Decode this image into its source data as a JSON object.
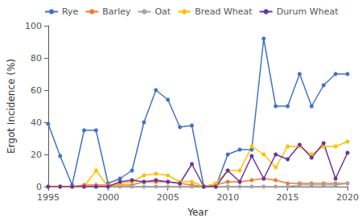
{
  "chart_data": {
    "type": "line",
    "xlabel": "Year",
    "ylabel": "Ergot Incidence (%)",
    "x": [
      1995,
      1996,
      1997,
      1998,
      1999,
      2000,
      2001,
      2002,
      2003,
      2004,
      2005,
      2006,
      2007,
      2008,
      2009,
      2010,
      2011,
      2012,
      2013,
      2014,
      2015,
      2016,
      2017,
      2018,
      2019,
      2020
    ],
    "series": [
      {
        "name": "Rye",
        "color": "#4472C4",
        "values": [
          39,
          19,
          1,
          35,
          35,
          2,
          5,
          10,
          40,
          60,
          54,
          37,
          38,
          0,
          0,
          20,
          23,
          23,
          92,
          50,
          50,
          70,
          50,
          63,
          70,
          70
        ]
      },
      {
        "name": "Barley",
        "color": "#ED7D31",
        "values": [
          0,
          0,
          0,
          1,
          1,
          1,
          1,
          1,
          3,
          3,
          3,
          2,
          1,
          0,
          1,
          3,
          3,
          4,
          5,
          4,
          2,
          2,
          2,
          2,
          2,
          2
        ]
      },
      {
        "name": "Oat",
        "color": "#A5A5A5",
        "values": [
          0,
          0,
          0,
          0,
          0,
          0,
          0,
          0,
          0,
          0,
          0,
          0,
          0,
          0,
          0,
          0,
          0,
          0,
          0,
          0,
          0,
          1,
          1,
          1,
          1,
          2
        ]
      },
      {
        "name": "Bread Wheat",
        "color": "#FFC000",
        "values": [
          0,
          0,
          0,
          0,
          10,
          0,
          2,
          3,
          7,
          8,
          7,
          3,
          3,
          0,
          2,
          10,
          10,
          25,
          20,
          12,
          25,
          25,
          20,
          25,
          25,
          28
        ]
      },
      {
        "name": "Durum Wheat",
        "color": "#7030A0",
        "values": [
          0,
          0,
          0,
          0,
          0,
          0,
          3,
          4,
          3,
          4,
          3,
          2,
          14,
          0,
          0,
          10,
          3,
          19,
          5,
          20,
          17,
          26,
          18,
          27,
          5,
          21
        ]
      }
    ],
    "xlim": [
      1995,
      2020
    ],
    "xticks": [
      1995,
      2000,
      2005,
      2010,
      2015,
      2020
    ],
    "ylim": [
      0,
      100
    ],
    "yticks": [
      0,
      20,
      40,
      60,
      80,
      100
    ],
    "marker": "circle",
    "grid": false,
    "legend": "upper left"
  }
}
